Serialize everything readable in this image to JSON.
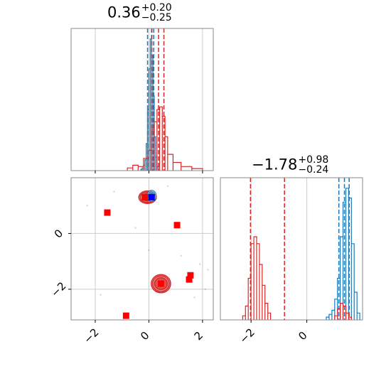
{
  "chart_data": [
    {
      "panel": "marginal-param-1",
      "type": "histogram",
      "title": {
        "value": "0.36",
        "upper": "+0.20",
        "lower": "−0.25"
      },
      "xlim": [
        -2.9,
        2.4
      ],
      "x_ticks": [
        -2,
        0,
        2
      ],
      "grid": true,
      "series": [
        {
          "color": "#1f77b4",
          "bins": [
            [
              -0.3,
              -0.25,
              0.01
            ],
            [
              -0.25,
              -0.2,
              0.02
            ],
            [
              -0.2,
              -0.15,
              0.04
            ],
            [
              -0.15,
              -0.1,
              0.08
            ],
            [
              -0.1,
              -0.05,
              0.2
            ],
            [
              -0.05,
              0.0,
              0.45
            ],
            [
              0.0,
              0.05,
              0.75
            ],
            [
              0.05,
              0.1,
              0.97
            ],
            [
              0.1,
              0.15,
              0.85
            ],
            [
              0.15,
              0.2,
              0.55
            ],
            [
              0.2,
              0.25,
              0.25
            ],
            [
              0.25,
              0.3,
              0.1
            ],
            [
              0.3,
              0.35,
              0.03
            ]
          ],
          "quantile_lines": [
            -0.05,
            0.1,
            0.18
          ]
        },
        {
          "color": "#d62728",
          "bins": [
            [
              -0.8,
              -0.6,
              0.02
            ],
            [
              -0.6,
              -0.4,
              0.04
            ],
            [
              -0.4,
              -0.2,
              0.03
            ],
            [
              -0.2,
              0.0,
              0.09
            ],
            [
              0.0,
              0.1,
              0.15
            ],
            [
              0.1,
              0.2,
              0.3
            ],
            [
              0.2,
              0.3,
              0.36
            ],
            [
              0.3,
              0.4,
              0.45
            ],
            [
              0.4,
              0.5,
              0.47
            ],
            [
              0.5,
              0.6,
              0.4
            ],
            [
              0.6,
              0.7,
              0.25
            ],
            [
              0.7,
              0.9,
              0.12
            ],
            [
              0.9,
              1.2,
              0.06
            ],
            [
              1.2,
              1.6,
              0.03
            ],
            [
              1.6,
              2.0,
              0.015
            ]
          ],
          "quantile_lines": [
            0.11,
            0.36,
            0.56
          ]
        }
      ]
    },
    {
      "panel": "joint-2d",
      "type": "contour-scatter",
      "xlim": [
        -2.9,
        2.4
      ],
      "ylim": [
        -3.1,
        2.0
      ],
      "x_ticks": [
        -2,
        0,
        2
      ],
      "y_ticks": [
        -2,
        0
      ],
      "grid": true,
      "blue_contour": {
        "color": "#1f77b4",
        "center": [
          0.1,
          1.35
        ],
        "radii": [
          [
            0.35,
            0.4
          ],
          [
            0.25,
            0.3
          ],
          [
            0.15,
            0.2
          ]
        ],
        "marker": [
          0.1,
          1.3
        ]
      },
      "red_contours": [
        {
          "color": "#d62728",
          "center": [
            -0.05,
            1.3
          ],
          "radii": [
            [
              0.65,
              0.45
            ],
            [
              0.55,
              0.37
            ],
            [
              0.4,
              0.27
            ]
          ]
        },
        {
          "color": "#d62728",
          "center": [
            0.45,
            -1.8
          ],
          "radii": [
            [
              0.72,
              0.65
            ],
            [
              0.62,
              0.56
            ],
            [
              0.48,
              0.42
            ]
          ]
        }
      ],
      "red_markers": [
        [
          -0.15,
          1.3
        ],
        [
          -1.55,
          0.75
        ],
        [
          1.05,
          0.3
        ],
        [
          1.55,
          -1.5
        ],
        [
          1.5,
          -1.65
        ],
        [
          0.45,
          -1.8
        ],
        [
          -0.85,
          -2.95
        ]
      ],
      "outlier_points": [
        [
          -2.3,
          1.0
        ],
        [
          1.9,
          -1.1
        ],
        [
          2.1,
          -2.0
        ],
        [
          -0.5,
          0.2
        ],
        [
          0.7,
          1.7
        ],
        [
          1.2,
          -0.8
        ],
        [
          -1.8,
          -2.2
        ],
        [
          0.0,
          -0.6
        ],
        [
          2.2,
          -1.3
        ],
        [
          1.7,
          -2.3
        ],
        [
          -1.3,
          1.5
        ]
      ]
    },
    {
      "panel": "marginal-param-2",
      "type": "histogram",
      "title": {
        "value": "−1.78",
        "upper": "+0.98",
        "lower": "−0.24"
      },
      "xlim": [
        -3.1,
        2.0
      ],
      "x_ticks": [
        -2,
        0
      ],
      "grid": true,
      "series": [
        {
          "color": "#1f77b4",
          "bins": [
            [
              0.7,
              0.8,
              0.02
            ],
            [
              0.8,
              0.9,
              0.04
            ],
            [
              0.9,
              1.0,
              0.07
            ],
            [
              1.0,
              1.1,
              0.15
            ],
            [
              1.1,
              1.2,
              0.3
            ],
            [
              1.2,
              1.3,
              0.6
            ],
            [
              1.3,
              1.4,
              0.85
            ],
            [
              1.4,
              1.5,
              0.95
            ],
            [
              1.5,
              1.6,
              0.88
            ],
            [
              1.6,
              1.7,
              0.55
            ],
            [
              1.7,
              1.8,
              0.2
            ],
            [
              1.8,
              1.9,
              0.05
            ]
          ],
          "quantile_lines": [
            1.15,
            1.35,
            1.52
          ]
        },
        {
          "color": "#d62728",
          "bins": [
            [
              -2.3,
              -2.2,
              0.03
            ],
            [
              -2.2,
              -2.1,
              0.1
            ],
            [
              -2.1,
              -2.0,
              0.3
            ],
            [
              -2.0,
              -1.9,
              0.55
            ],
            [
              -1.9,
              -1.8,
              0.6
            ],
            [
              -1.8,
              -1.7,
              0.55
            ],
            [
              -1.7,
              -1.6,
              0.4
            ],
            [
              -1.6,
              -1.5,
              0.25
            ],
            [
              -1.5,
              -1.4,
              0.12
            ],
            [
              -1.4,
              -1.3,
              0.05
            ],
            [
              1.0,
              1.1,
              0.03
            ],
            [
              1.1,
              1.2,
              0.08
            ],
            [
              1.2,
              1.3,
              0.12
            ],
            [
              1.3,
              1.4,
              0.1
            ],
            [
              1.4,
              1.5,
              0.05
            ],
            [
              1.5,
              1.6,
              0.02
            ]
          ],
          "quantile_lines": [
            -2.02,
            -0.8
          ]
        }
      ]
    }
  ]
}
